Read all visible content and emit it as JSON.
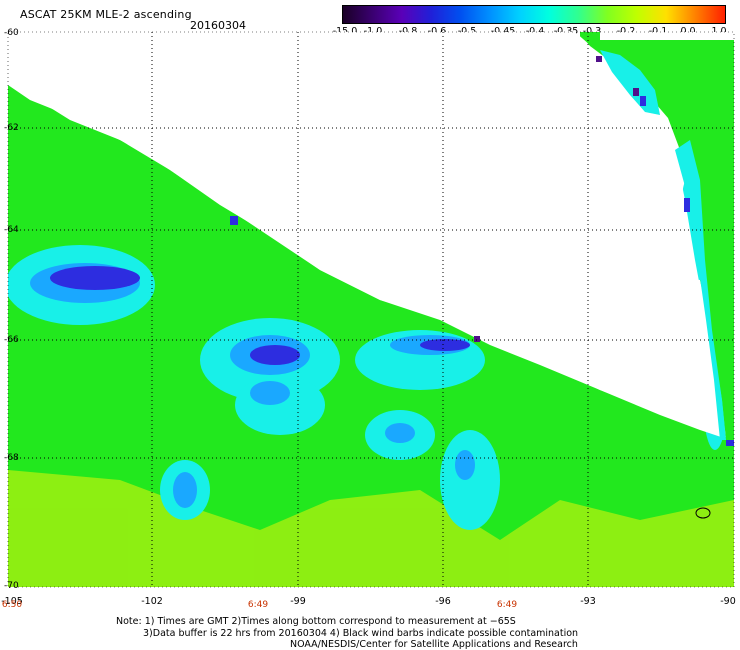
{
  "header": {
    "title": "ASCAT 25KM MLE-2 ascending",
    "date": "20160304"
  },
  "colorbar": {
    "labels": [
      "-15.0",
      "-1.0",
      "-0.8",
      "-0.6",
      "-0.5",
      "-0.45",
      "-0.4",
      "-0.35",
      "-0.3",
      "-0.2",
      "-0.1",
      "0.0",
      "1.0"
    ],
    "colors": [
      "#1a0026",
      "#3a0070",
      "#5a00b8",
      "#2020d8",
      "#0050f0",
      "#0090ff",
      "#00d0ff",
      "#00ffe0",
      "#30ff90",
      "#80ff20",
      "#c0ff00",
      "#ffe000",
      "#ff8000",
      "#ff2000"
    ]
  },
  "axes": {
    "lat_labels": [
      "-60",
      "-62",
      "-64",
      "-66",
      "-68",
      "-70"
    ],
    "lon_labels": [
      "-105",
      "-102",
      "-99",
      "-96",
      "-93",
      "-90"
    ],
    "time_labels": [
      "6:50",
      "6:49",
      "6:49"
    ]
  },
  "notes": {
    "line1": "Note: 1) Times are GMT 2)Times along bottom correspond to measurement at −65S",
    "line2": "3)Data buffer is 22 hrs from 20160304 4) Black wind barbs indicate possible contamination",
    "line3": "NOAA/NESDIS/Center for Satellite Applications and Research"
  }
}
